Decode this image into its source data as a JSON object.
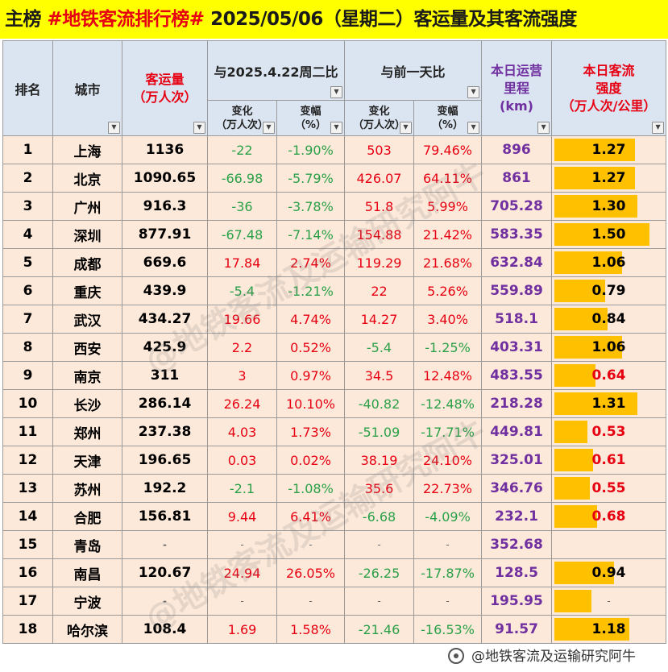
{
  "title": {
    "prefix": "主榜",
    "hashtag": "#地铁客流排行榜#",
    "date": "2025/05/06（星期二）客运量及其客流强度"
  },
  "headers": {
    "rank": "排名",
    "city": "城市",
    "volume_line1": "客运量",
    "volume_line2": "（万人次）",
    "cmp_week": "与2025.4.22周二比",
    "cmp_day": "与前一天比",
    "change_line1": "变化",
    "change_line2": "（万人次）",
    "pct_line1": "变幅",
    "pct_line2": "（%）",
    "km_line1": "本日运营",
    "km_line2": "里程",
    "km_line3": "(km)",
    "intensity_line1": "本日客流",
    "intensity_line2": "强度",
    "intensity_line3": "（万人次/公里）"
  },
  "dash": "-",
  "intensity_max": 1.5,
  "rows": [
    {
      "rank": "1",
      "city": "上海",
      "volume": "1136",
      "wk_change": "-22",
      "wk_pct": "-1.90%",
      "day_change": "503",
      "day_pct": "79.46%",
      "km": "896",
      "intensity": "1.27"
    },
    {
      "rank": "2",
      "city": "北京",
      "volume": "1090.65",
      "wk_change": "-66.98",
      "wk_pct": "-5.79%",
      "day_change": "426.07",
      "day_pct": "64.11%",
      "km": "861",
      "intensity": "1.27"
    },
    {
      "rank": "3",
      "city": "广州",
      "volume": "916.3",
      "wk_change": "-36",
      "wk_pct": "-3.78%",
      "day_change": "51.8",
      "day_pct": "5.99%",
      "km": "705.28",
      "intensity": "1.30"
    },
    {
      "rank": "4",
      "city": "深圳",
      "volume": "877.91",
      "wk_change": "-67.48",
      "wk_pct": "-7.14%",
      "day_change": "154.88",
      "day_pct": "21.42%",
      "km": "583.35",
      "intensity": "1.50"
    },
    {
      "rank": "5",
      "city": "成都",
      "volume": "669.6",
      "wk_change": "17.84",
      "wk_pct": "2.74%",
      "day_change": "119.29",
      "day_pct": "21.68%",
      "km": "632.84",
      "intensity": "1.06"
    },
    {
      "rank": "6",
      "city": "重庆",
      "volume": "439.9",
      "wk_change": "-5.4",
      "wk_pct": "-1.21%",
      "day_change": "22",
      "day_pct": "5.26%",
      "km": "559.89",
      "intensity": "0.79"
    },
    {
      "rank": "7",
      "city": "武汉",
      "volume": "434.27",
      "wk_change": "19.66",
      "wk_pct": "4.74%",
      "day_change": "14.27",
      "day_pct": "3.40%",
      "km": "518.1",
      "intensity": "0.84"
    },
    {
      "rank": "8",
      "city": "西安",
      "volume": "425.9",
      "wk_change": "2.2",
      "wk_pct": "0.52%",
      "day_change": "-5.4",
      "day_pct": "-1.25%",
      "km": "403.31",
      "intensity": "1.06"
    },
    {
      "rank": "9",
      "city": "南京",
      "volume": "311",
      "wk_change": "3",
      "wk_pct": "0.97%",
      "day_change": "34.5",
      "day_pct": "12.48%",
      "km": "483.55",
      "intensity": "0.64"
    },
    {
      "rank": "10",
      "city": "长沙",
      "volume": "286.14",
      "wk_change": "26.24",
      "wk_pct": "10.10%",
      "day_change": "-40.82",
      "day_pct": "-12.48%",
      "km": "218.28",
      "intensity": "1.31"
    },
    {
      "rank": "11",
      "city": "郑州",
      "volume": "237.38",
      "wk_change": "4.03",
      "wk_pct": "1.73%",
      "day_change": "-51.09",
      "day_pct": "-17.71%",
      "km": "449.81",
      "intensity": "0.53"
    },
    {
      "rank": "12",
      "city": "天津",
      "volume": "196.65",
      "wk_change": "0.03",
      "wk_pct": "0.02%",
      "day_change": "38.19",
      "day_pct": "24.10%",
      "km": "325.01",
      "intensity": "0.61"
    },
    {
      "rank": "13",
      "city": "苏州",
      "volume": "192.2",
      "wk_change": "-2.1",
      "wk_pct": "-1.08%",
      "day_change": "35.6",
      "day_pct": "22.73%",
      "km": "346.76",
      "intensity": "0.55"
    },
    {
      "rank": "14",
      "city": "合肥",
      "volume": "156.81",
      "wk_change": "9.44",
      "wk_pct": "6.41%",
      "day_change": "-6.68",
      "day_pct": "-4.09%",
      "km": "232.1",
      "intensity": "0.68"
    },
    {
      "rank": "15",
      "city": "青岛",
      "volume": "-",
      "wk_change": "-",
      "wk_pct": "-",
      "day_change": "-",
      "day_pct": "-",
      "km": "352.68",
      "intensity": ""
    },
    {
      "rank": "16",
      "city": "南昌",
      "volume": "120.67",
      "wk_change": "24.94",
      "wk_pct": "26.05%",
      "day_change": "-26.25",
      "day_pct": "-17.87%",
      "km": "128.5",
      "intensity": "0.94"
    },
    {
      "rank": "17",
      "city": "宁波",
      "volume": "-",
      "wk_change": "-",
      "wk_pct": "-",
      "day_change": "-",
      "day_pct": "-",
      "km": "195.95",
      "intensity": "-"
    },
    {
      "rank": "18",
      "city": "哈尔滨",
      "volume": "108.4",
      "wk_change": "1.69",
      "wk_pct": "1.58%",
      "day_change": "-21.46",
      "day_pct": "-16.53%",
      "km": "91.57",
      "intensity": "1.18"
    }
  ],
  "bar_fractions": [
    0.85,
    0.85,
    0.87,
    1.0,
    0.71,
    0.53,
    0.56,
    0.71,
    0.43,
    0.87,
    0.35,
    0.41,
    0.37,
    0.45,
    0,
    0.63,
    0.39,
    0.79
  ],
  "footer": "@地铁客流及运输研究阿牛",
  "watermark": "@地铁客流及运输研究阿牛"
}
